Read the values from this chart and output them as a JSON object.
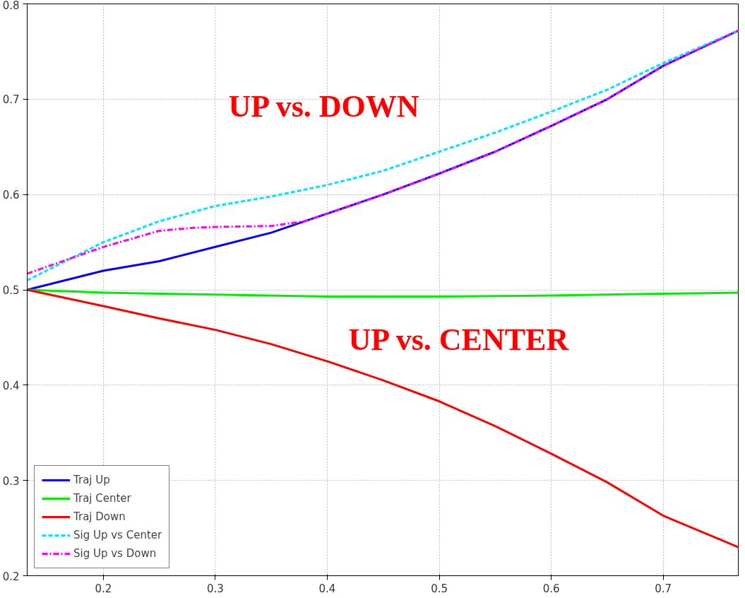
{
  "chart_data": {
    "type": "line",
    "xlim": [
      0.132,
      0.767
    ],
    "ylim": [
      0.2,
      0.8
    ],
    "xticks": [
      0.2,
      0.3,
      0.4,
      0.5,
      0.6,
      0.7
    ],
    "yticks": [
      0.2,
      0.3,
      0.4,
      0.5,
      0.6,
      0.7,
      0.8
    ],
    "grid": true,
    "legend": "bottom left",
    "series": [
      {
        "name": "Traj Up",
        "color": "#0000ff",
        "line_style": "solid",
        "x": [
          0.132,
          0.2,
          0.25,
          0.3,
          0.35,
          0.4,
          0.45,
          0.5,
          0.55,
          0.6,
          0.65,
          0.7,
          0.767
        ],
        "values": [
          0.5,
          0.52,
          0.53,
          0.545,
          0.56,
          0.58,
          0.6,
          0.622,
          0.645,
          0.672,
          0.7,
          0.735,
          0.772
        ]
      },
      {
        "name": "Traj Center",
        "color": "#00ee00",
        "line_style": "solid",
        "x": [
          0.132,
          0.2,
          0.3,
          0.4,
          0.5,
          0.6,
          0.7,
          0.767
        ],
        "values": [
          0.5,
          0.497,
          0.495,
          0.493,
          0.493,
          0.494,
          0.496,
          0.497
        ]
      },
      {
        "name": "Traj Down",
        "color": "#ff0000",
        "line_style": "solid",
        "x": [
          0.132,
          0.2,
          0.25,
          0.3,
          0.35,
          0.4,
          0.45,
          0.5,
          0.55,
          0.6,
          0.65,
          0.7,
          0.767
        ],
        "values": [
          0.5,
          0.483,
          0.47,
          0.458,
          0.443,
          0.425,
          0.405,
          0.383,
          0.357,
          0.328,
          0.298,
          0.263,
          0.23
        ]
      },
      {
        "name": "Sig Up vs Center",
        "color": "#00e5ff",
        "line_style": "dashed",
        "x": [
          0.132,
          0.2,
          0.25,
          0.3,
          0.35,
          0.4,
          0.45,
          0.5,
          0.55,
          0.6,
          0.65,
          0.7,
          0.767
        ],
        "values": [
          0.51,
          0.55,
          0.572,
          0.588,
          0.598,
          0.61,
          0.625,
          0.645,
          0.665,
          0.687,
          0.71,
          0.738,
          0.772
        ]
      },
      {
        "name": "Sig Up vs Down",
        "color": "#ff00ff",
        "line_style": "dashdot",
        "x": [
          0.132,
          0.2,
          0.25,
          0.28,
          0.3,
          0.35,
          0.38,
          0.4,
          0.45,
          0.5,
          0.55,
          0.6,
          0.65,
          0.7,
          0.767
        ],
        "values": [
          0.517,
          0.545,
          0.562,
          0.565,
          0.566,
          0.567,
          0.572,
          0.58,
          0.6,
          0.622,
          0.645,
          0.672,
          0.7,
          0.735,
          0.772
        ]
      }
    ],
    "annotations": [
      "UP vs. DOWN",
      "UP vs. CENTER"
    ]
  }
}
